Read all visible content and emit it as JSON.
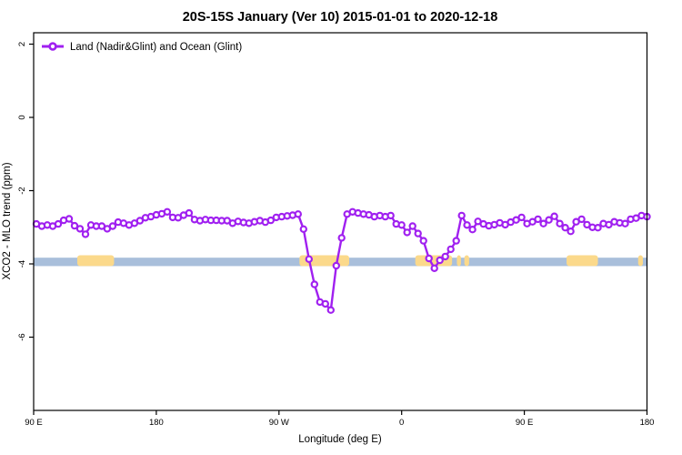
{
  "title": "20S-15S January (Ver 10)   2015-01-01 to 2020-12-18",
  "legend": {
    "label": "Land (Nadir&Glint) and Ocean (Glint)"
  },
  "axes": {
    "x": {
      "label": "Longitude (deg E)",
      "ticks": [
        {
          "deg": 90,
          "label": "90 E"
        },
        {
          "deg": 180,
          "label": "180"
        },
        {
          "deg": 270,
          "label": "90 W"
        },
        {
          "deg": 360,
          "label": "0"
        },
        {
          "deg": 450,
          "label": "90 E"
        },
        {
          "deg": 540,
          "label": "180"
        }
      ]
    },
    "y": {
      "label": "XCO2 - MLO trend (ppm)",
      "ticks": [
        {
          "value": 2,
          "label": "2"
        },
        {
          "value": 0,
          "label": "0"
        },
        {
          "value": -2,
          "label": "-2"
        },
        {
          "value": -4,
          "label": "-4"
        },
        {
          "value": -6,
          "label": "-6"
        }
      ]
    }
  },
  "colors": {
    "series": "#a020f0",
    "marker_fill": "#ffffff",
    "ocean_band": "#a9bfdb",
    "land_band": "#fbd98b",
    "axis": "#000000"
  },
  "chart_data": {
    "type": "line",
    "title": "20S-15S January (Ver 10)   2015-01-01 to 2020-12-18",
    "xlabel": "Longitude (deg E)",
    "ylabel": "XCO2 - MLO trend (ppm)",
    "x_axis_note": "longitude axis wraps eastward: 90E -> 180 -> 90W -> 0 -> 90E -> 180 (plotted 90..540)",
    "xlim_deg": [
      90,
      540
    ],
    "ylim": [
      -8.0,
      2.3
    ],
    "grid": false,
    "legend_position": "top-left",
    "series": [
      {
        "name": "Land (Nadir&Glint) and Ocean (Glint)",
        "color": "#a020f0",
        "marker": "open-circle",
        "x_deg": [
          92,
          96,
          100,
          104,
          108,
          112,
          116,
          120,
          124,
          128,
          132,
          136,
          140,
          144,
          148,
          152,
          156,
          160,
          164,
          168,
          172,
          176,
          180,
          184,
          188,
          192,
          196,
          200,
          204,
          208,
          212,
          216,
          220,
          224,
          228,
          232,
          236,
          240,
          244,
          248,
          252,
          256,
          260,
          264,
          268,
          272,
          276,
          280,
          284,
          288,
          292,
          296,
          300,
          304,
          308,
          312,
          316,
          320,
          324,
          328,
          332,
          336,
          340,
          344,
          348,
          352,
          356,
          360,
          364,
          368,
          372,
          376,
          380,
          384,
          388,
          392,
          396,
          400,
          404,
          408,
          412,
          416,
          420,
          424,
          428,
          432,
          436,
          440,
          444,
          448,
          452,
          456,
          460,
          464,
          468,
          472,
          476,
          480,
          484,
          488,
          492,
          496,
          500,
          504,
          508,
          512,
          516,
          520,
          524,
          528,
          532,
          536,
          540
        ],
        "values": [
          -2.91,
          -2.97,
          -2.94,
          -2.97,
          -2.91,
          -2.81,
          -2.77,
          -2.96,
          -3.04,
          -3.19,
          -2.94,
          -2.97,
          -2.97,
          -3.04,
          -2.97,
          -2.86,
          -2.89,
          -2.94,
          -2.89,
          -2.82,
          -2.74,
          -2.71,
          -2.66,
          -2.63,
          -2.58,
          -2.73,
          -2.74,
          -2.67,
          -2.61,
          -2.79,
          -2.82,
          -2.79,
          -2.81,
          -2.81,
          -2.82,
          -2.82,
          -2.89,
          -2.84,
          -2.87,
          -2.89,
          -2.85,
          -2.82,
          -2.86,
          -2.81,
          -2.73,
          -2.71,
          -2.69,
          -2.67,
          -2.64,
          -3.05,
          -3.87,
          -4.56,
          -5.04,
          -5.09,
          -5.26,
          -4.05,
          -3.29,
          -2.64,
          -2.58,
          -2.61,
          -2.64,
          -2.66,
          -2.71,
          -2.68,
          -2.71,
          -2.68,
          -2.91,
          -2.94,
          -3.14,
          -2.97,
          -3.17,
          -3.37,
          -3.85,
          -4.12,
          -3.9,
          -3.8,
          -3.6,
          -3.37,
          -2.68,
          -2.94,
          -3.06,
          -2.84,
          -2.91,
          -2.96,
          -2.93,
          -2.88,
          -2.93,
          -2.86,
          -2.8,
          -2.73,
          -2.9,
          -2.85,
          -2.78,
          -2.9,
          -2.8,
          -2.7,
          -2.9,
          -3.01,
          -3.11,
          -2.85,
          -2.78,
          -2.93,
          -3.0,
          -3.01,
          -2.9,
          -2.93,
          -2.85,
          -2.88,
          -2.9,
          -2.78,
          -2.75,
          -2.68,
          -2.71
        ]
      }
    ],
    "surface_band": {
      "description": "ocean/land strip drawn across plot near -3.9 ppm",
      "value_top": -3.83,
      "value_bottom": -4.06,
      "ocean_color": "#a9bfdb",
      "land_color": "#fbd98b",
      "land_segments_deg": [
        [
          122,
          149
        ],
        [
          285,
          321.5
        ],
        [
          370,
          397
        ],
        [
          400.5,
          403.5
        ],
        [
          406,
          409.5
        ],
        [
          481,
          504
        ],
        [
          533.5,
          537
        ]
      ]
    }
  }
}
